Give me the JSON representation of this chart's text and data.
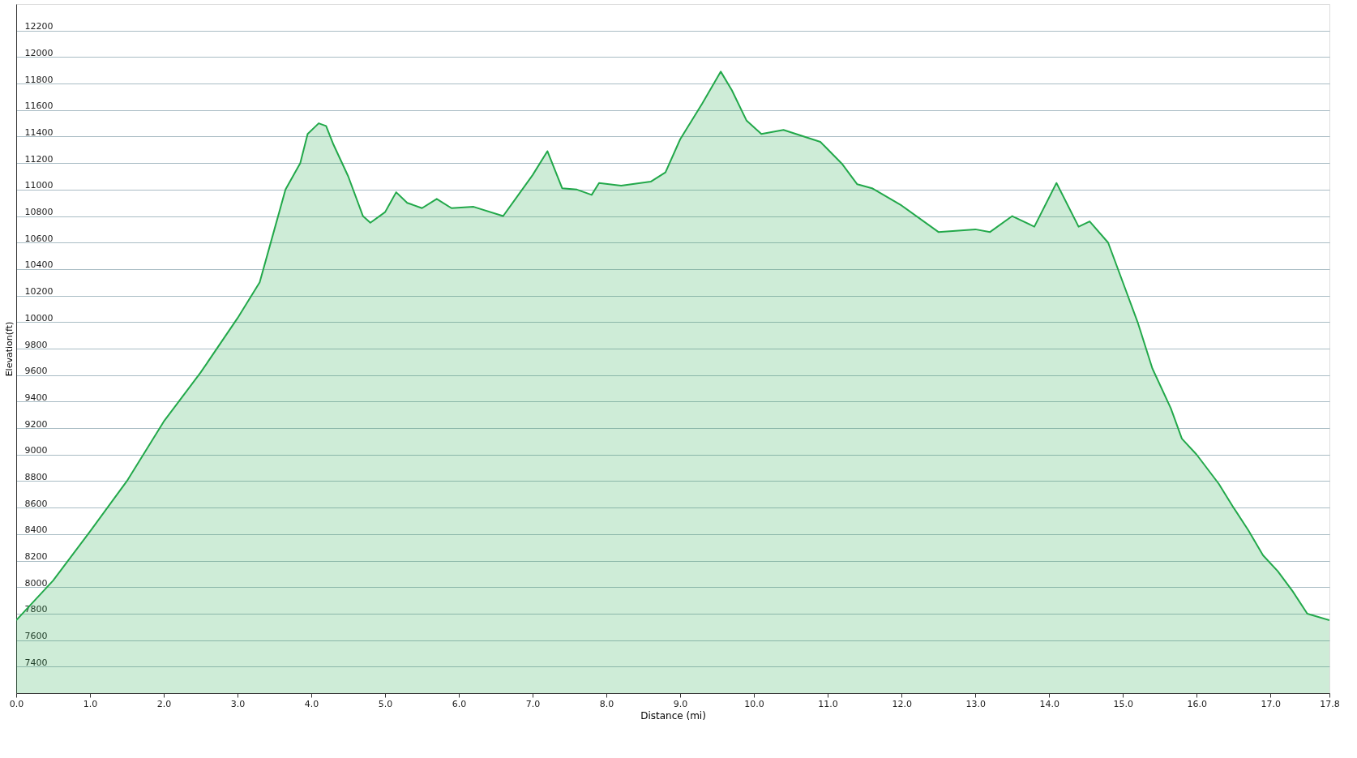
{
  "chart_data": {
    "type": "area",
    "xlabel": "Distance  (mi)",
    "ylabel": "Elevation(ft)",
    "x": [
      0,
      0.5,
      1.0,
      1.5,
      2.0,
      2.5,
      3.0,
      3.3,
      3.5,
      3.65,
      3.85,
      3.95,
      4.1,
      4.2,
      4.3,
      4.5,
      4.7,
      4.8,
      5.0,
      5.15,
      5.3,
      5.5,
      5.7,
      5.9,
      6.2,
      6.6,
      7.0,
      7.2,
      7.4,
      7.6,
      7.8,
      7.9,
      8.2,
      8.6,
      8.8,
      9.0,
      9.3,
      9.55,
      9.7,
      9.9,
      10.1,
      10.4,
      10.9,
      11.2,
      11.4,
      11.6,
      12.0,
      12.5,
      13.0,
      13.2,
      13.5,
      13.8,
      14.1,
      14.4,
      14.55,
      14.8,
      15.0,
      15.2,
      15.4,
      15.65,
      15.8,
      16.0,
      16.3,
      16.5,
      16.7,
      16.9,
      17.1,
      17.3,
      17.5,
      17.8
    ],
    "series": [
      {
        "color": "#22a84a",
        "values": [
          7750,
          8050,
          8420,
          8800,
          9250,
          9620,
          10030,
          10300,
          10700,
          11000,
          11200,
          11420,
          11500,
          11480,
          11340,
          11100,
          10800,
          10750,
          10830,
          10980,
          10900,
          10860,
          10930,
          10860,
          10870,
          10800,
          11110,
          11290,
          11010,
          11000,
          10960,
          11050,
          11030,
          11060,
          11130,
          11380,
          11650,
          11890,
          11750,
          11520,
          11420,
          11450,
          11360,
          11190,
          11040,
          11010,
          10880,
          10680,
          10700,
          10680,
          10800,
          10720,
          11050,
          10720,
          10760,
          10600,
          10300,
          10000,
          9650,
          9350,
          9120,
          9000,
          8780,
          8600,
          8430,
          8240,
          8120,
          7970,
          7800,
          7750
        ]
      }
    ],
    "xlim": [
      0,
      17.8
    ],
    "xticks": [
      {
        "value": 0,
        "label": "0.0"
      },
      {
        "value": 1,
        "label": "1.0"
      },
      {
        "value": 2,
        "label": "2.0"
      },
      {
        "value": 3,
        "label": "3.0"
      },
      {
        "value": 4,
        "label": "4.0"
      },
      {
        "value": 5,
        "label": "5.0"
      },
      {
        "value": 6,
        "label": "6.0"
      },
      {
        "value": 7,
        "label": "7.0"
      },
      {
        "value": 8,
        "label": "8.0"
      },
      {
        "value": 9,
        "label": "9.0"
      },
      {
        "value": 10,
        "label": "10.0"
      },
      {
        "value": 11,
        "label": "11.0"
      },
      {
        "value": 12,
        "label": "12.0"
      },
      {
        "value": 13,
        "label": "13.0"
      },
      {
        "value": 14,
        "label": "14.0"
      },
      {
        "value": 15,
        "label": "15.0"
      },
      {
        "value": 16,
        "label": "16.0"
      },
      {
        "value": 17,
        "label": "17.0"
      },
      17.8
    ],
    "ylim": [
      7200,
      12400
    ],
    "yticks": [
      7400,
      7600,
      7800,
      8000,
      8200,
      8400,
      8600,
      8800,
      9000,
      9200,
      9400,
      9600,
      9800,
      10000,
      10200,
      10400,
      10600,
      10800,
      11000,
      11200,
      11400,
      11600,
      11800,
      12000,
      12200
    ],
    "grid": "y",
    "line_style": "solid"
  }
}
